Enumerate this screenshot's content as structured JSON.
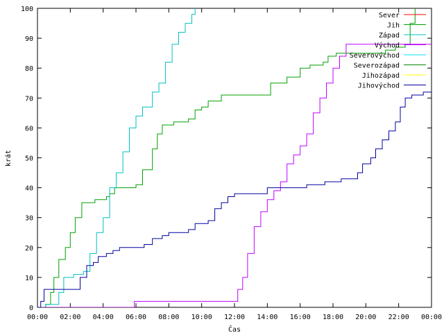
{
  "chart_data": {
    "type": "line",
    "title": "",
    "xlabel": "Čas",
    "ylabel": "krát",
    "xlim": [
      0,
      24
    ],
    "ylim": [
      0,
      100
    ],
    "x_ticks": [
      "00:00",
      "02:00",
      "04:00",
      "06:00",
      "08:00",
      "10:00",
      "12:00",
      "14:00",
      "16:00",
      "18:00",
      "20:00",
      "22:00",
      "00:00"
    ],
    "y_ticks": [
      0,
      10,
      20,
      30,
      40,
      50,
      60,
      70,
      80,
      90,
      100
    ],
    "grid": false,
    "legend_position": "top-right",
    "series": [
      {
        "name": "Sever",
        "color": "#ff0000",
        "points": []
      },
      {
        "name": "Jih",
        "color": "#00a000",
        "points": [
          [
            0,
            0
          ],
          [
            0.5,
            1
          ],
          [
            0.8,
            5
          ],
          [
            1.0,
            10
          ],
          [
            1.3,
            16
          ],
          [
            1.7,
            20
          ],
          [
            2.0,
            25
          ],
          [
            2.3,
            30
          ],
          [
            2.7,
            35
          ],
          [
            3.3,
            35
          ],
          [
            3.5,
            36
          ],
          [
            4.2,
            37
          ],
          [
            4.4,
            38
          ],
          [
            4.7,
            40
          ],
          [
            6.0,
            41
          ],
          [
            6.4,
            46
          ],
          [
            7.0,
            53
          ],
          [
            7.3,
            58
          ],
          [
            7.6,
            61
          ],
          [
            8.3,
            62
          ],
          [
            9.2,
            63
          ],
          [
            9.6,
            66
          ],
          [
            10.0,
            67
          ],
          [
            10.4,
            69
          ],
          [
            11.2,
            71
          ],
          [
            13.8,
            71
          ],
          [
            14.2,
            75
          ],
          [
            15.2,
            77
          ],
          [
            16.0,
            80
          ],
          [
            16.6,
            81
          ],
          [
            17.4,
            82
          ],
          [
            17.7,
            84
          ],
          [
            18.2,
            85
          ],
          [
            20.4,
            85
          ],
          [
            21.2,
            86
          ],
          [
            21.8,
            87
          ],
          [
            22.4,
            88
          ],
          [
            22.7,
            95
          ],
          [
            23.0,
            100
          ]
        ]
      },
      {
        "name": "Západ",
        "color": "#00c0c0",
        "points": [
          [
            0,
            0
          ],
          [
            0.5,
            1
          ],
          [
            1.3,
            5
          ],
          [
            1.6,
            10
          ],
          [
            2.2,
            11
          ],
          [
            2.8,
            12
          ],
          [
            3.2,
            18
          ],
          [
            3.6,
            25
          ],
          [
            4.0,
            30
          ],
          [
            4.4,
            40
          ],
          [
            4.8,
            45
          ],
          [
            5.2,
            52
          ],
          [
            5.6,
            60
          ],
          [
            6.0,
            64
          ],
          [
            6.4,
            67
          ],
          [
            7.0,
            72
          ],
          [
            7.4,
            75
          ],
          [
            7.8,
            82
          ],
          [
            8.2,
            88
          ],
          [
            8.6,
            92
          ],
          [
            9.0,
            95
          ],
          [
            9.4,
            98
          ],
          [
            9.6,
            100
          ]
        ]
      },
      {
        "name": "Východ",
        "color": "#c000ff",
        "points": [
          [
            0,
            0
          ],
          [
            5.8,
            0
          ],
          [
            5.9,
            2
          ],
          [
            12.0,
            2
          ],
          [
            12.2,
            6
          ],
          [
            12.5,
            10
          ],
          [
            12.8,
            18
          ],
          [
            13.2,
            27
          ],
          [
            13.6,
            32
          ],
          [
            14.0,
            36
          ],
          [
            14.4,
            39
          ],
          [
            14.8,
            42
          ],
          [
            15.2,
            48
          ],
          [
            15.6,
            51
          ],
          [
            16.0,
            54
          ],
          [
            16.4,
            58
          ],
          [
            16.8,
            65
          ],
          [
            17.2,
            70
          ],
          [
            17.6,
            75
          ],
          [
            18.0,
            80
          ],
          [
            18.4,
            84
          ],
          [
            18.8,
            88
          ],
          [
            19.5,
            88
          ],
          [
            24,
            88
          ]
        ]
      },
      {
        "name": "Severovýchod",
        "color": "#00e0ff",
        "points": []
      },
      {
        "name": "Severozápad",
        "color": "#008000",
        "points": []
      },
      {
        "name": "Jihozápad",
        "color": "#ffff00",
        "points": []
      },
      {
        "name": "Jihovýchod",
        "color": "#0000a0",
        "points": [
          [
            0,
            0
          ],
          [
            0.2,
            2
          ],
          [
            0.4,
            6
          ],
          [
            2.5,
            6
          ],
          [
            2.6,
            10
          ],
          [
            3.0,
            14
          ],
          [
            3.4,
            15
          ],
          [
            3.7,
            17
          ],
          [
            4.2,
            18
          ],
          [
            4.6,
            19
          ],
          [
            5.0,
            20
          ],
          [
            6.0,
            20
          ],
          [
            6.5,
            21
          ],
          [
            7.0,
            23
          ],
          [
            7.6,
            24
          ],
          [
            8.0,
            25
          ],
          [
            9.2,
            26
          ],
          [
            9.6,
            28
          ],
          [
            10.4,
            29
          ],
          [
            10.8,
            33
          ],
          [
            11.2,
            35
          ],
          [
            11.6,
            37
          ],
          [
            12.0,
            38
          ],
          [
            13.8,
            38
          ],
          [
            14.0,
            40
          ],
          [
            15.5,
            40
          ],
          [
            16.4,
            41
          ],
          [
            17.5,
            42
          ],
          [
            18.5,
            43
          ],
          [
            19.5,
            45
          ],
          [
            19.8,
            48
          ],
          [
            20.3,
            50
          ],
          [
            20.6,
            53
          ],
          [
            21.0,
            56
          ],
          [
            21.4,
            59
          ],
          [
            21.8,
            62
          ],
          [
            22.1,
            67
          ],
          [
            22.4,
            70
          ],
          [
            22.8,
            71
          ],
          [
            23.5,
            72
          ],
          [
            24,
            72
          ]
        ]
      }
    ]
  }
}
